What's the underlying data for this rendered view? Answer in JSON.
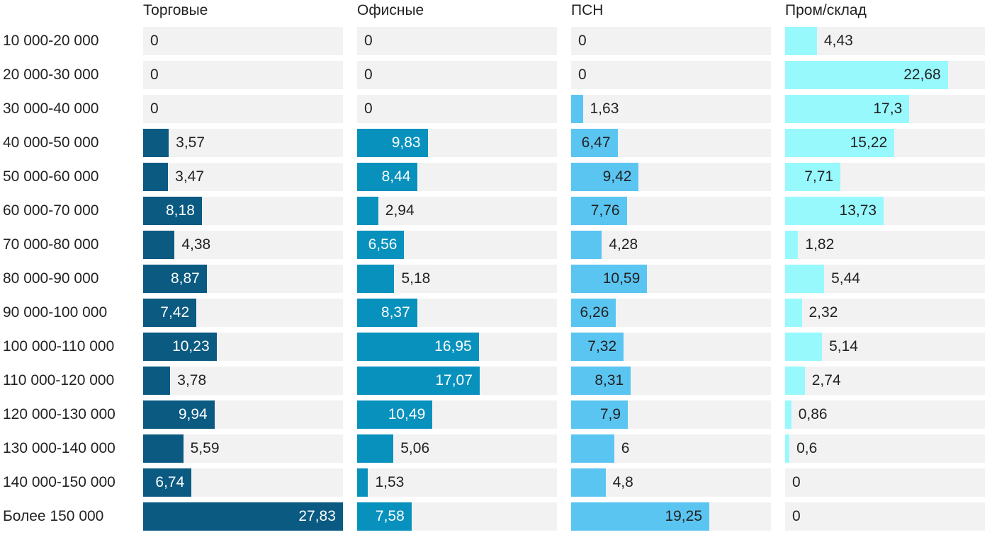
{
  "chart_data": {
    "type": "bar",
    "orientation": "horizontal",
    "layout": "small-multiples",
    "categories": [
      "10 000-20 000",
      "20 000-30 000",
      "30 000-40 000",
      "40 000-50 000",
      "50 000-60 000",
      "60 000-70 000",
      "70 000-80 000",
      "80 000-90 000",
      "90 000-100 000",
      "100 000-110 000",
      "110 000-120 000",
      "120 000-130 000",
      "130 000-140 000",
      "140 000-150 000",
      "Более 150 000"
    ],
    "series": [
      {
        "name": "Торговые",
        "color": "#0a5a82",
        "label_color_inside": "#ffffff",
        "values": [
          0,
          0,
          0,
          3.57,
          3.47,
          8.18,
          4.38,
          8.87,
          7.42,
          10.23,
          3.78,
          9.94,
          5.59,
          6.74,
          27.83
        ],
        "labels": [
          "0",
          "0",
          "0",
          "3,57",
          "3,47",
          "8,18",
          "4,38",
          "8,87",
          "7,42",
          "10,23",
          "3,78",
          "9,94",
          "5,59",
          "6,74",
          "27,83"
        ]
      },
      {
        "name": "Офисные",
        "color": "#0891bd",
        "label_color_inside": "#ffffff",
        "values": [
          0,
          0,
          0,
          9.83,
          8.44,
          2.94,
          6.56,
          5.18,
          8.37,
          16.95,
          17.07,
          10.49,
          5.06,
          1.53,
          7.58
        ],
        "labels": [
          "0",
          "0",
          "0",
          "9,83",
          "8,44",
          "2,94",
          "6,56",
          "5,18",
          "8,37",
          "16,95",
          "17,07",
          "10,49",
          "5,06",
          "1,53",
          "7,58"
        ]
      },
      {
        "name": "ПСН",
        "color": "#5bc5f2",
        "label_color_inside": "#222222",
        "values": [
          0,
          0,
          1.63,
          6.47,
          9.42,
          7.76,
          4.28,
          10.59,
          6.26,
          7.32,
          8.31,
          7.9,
          6,
          4.8,
          19.25
        ],
        "labels": [
          "0",
          "0",
          "1,63",
          "6,47",
          "9,42",
          "7,76",
          "4,28",
          "10,59",
          "6,26",
          "7,32",
          "8,31",
          "7,9",
          "6",
          "4,8",
          "19,25"
        ]
      },
      {
        "name": "Пром/склад",
        "color": "#98f9fd",
        "label_color_inside": "#222222",
        "values": [
          4.43,
          22.68,
          17.3,
          15.22,
          7.71,
          13.73,
          1.82,
          5.44,
          2.32,
          5.14,
          2.74,
          0.86,
          0.6,
          0,
          0
        ],
        "labels": [
          "4,43",
          "22,68",
          "17,3",
          "15,22",
          "7,71",
          "13,73",
          "1,82",
          "5,44",
          "2,32",
          "5,14",
          "2,74",
          "0,86",
          "0,6",
          "0",
          "0"
        ]
      }
    ],
    "track_color": "#f2f2f2",
    "label_color_outside": "#222222",
    "grid": false,
    "legend": "none"
  }
}
